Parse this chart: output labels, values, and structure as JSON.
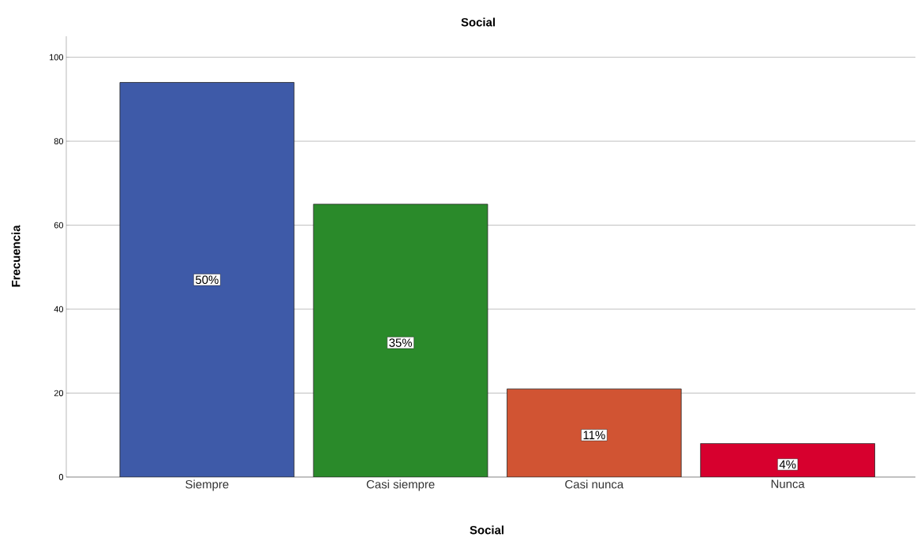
{
  "chart_data": {
    "type": "bar",
    "title": "Social",
    "xlabel": "Social",
    "ylabel": "Frecuencia",
    "categories": [
      "Siempre",
      "Casi siempre",
      "Casi nunca",
      "Nunca"
    ],
    "values": [
      94,
      65,
      21,
      8
    ],
    "colors": [
      "#3e5aa8",
      "#2a8a2a",
      "#d15433",
      "#d7002e"
    ],
    "annotations": [
      {
        "text": "50%",
        "x": "Siempre",
        "y": 47
      },
      {
        "text": "35%",
        "x": "Casi siempre",
        "y": 32
      },
      {
        "text": "11%",
        "x": "Casi nunca",
        "y": 10
      },
      {
        "text": "4%",
        "x": "Nunca",
        "y": 3
      }
    ],
    "ylim": [
      0,
      105
    ],
    "yticks": [
      0,
      20,
      40,
      60,
      80,
      100
    ],
    "grid": "y"
  }
}
